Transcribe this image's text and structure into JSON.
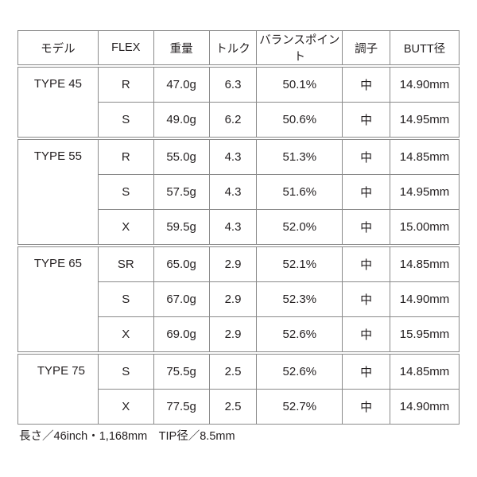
{
  "headers": [
    "モデル",
    "FLEX",
    "重量",
    "トルク",
    "バランスポイント",
    "調子",
    "BUTT径"
  ],
  "groups": [
    {
      "model": "TYPE 45",
      "rows": [
        [
          "R",
          "47.0g",
          "6.3",
          "50.1%",
          "中",
          "14.90mm"
        ],
        [
          "S",
          "49.0g",
          "6.2",
          "50.6%",
          "中",
          "14.95mm"
        ]
      ]
    },
    {
      "model": "TYPE 55",
      "rows": [
        [
          "R",
          "55.0g",
          "4.3",
          "51.3%",
          "中",
          "14.85mm"
        ],
        [
          "S",
          "57.5g",
          "4.3",
          "51.6%",
          "中",
          "14.95mm"
        ],
        [
          "X",
          "59.5g",
          "4.3",
          "52.0%",
          "中",
          "15.00mm"
        ]
      ]
    },
    {
      "model": "TYPE 65",
      "rows": [
        [
          "SR",
          "65.0g",
          "2.9",
          "52.1%",
          "中",
          "14.85mm"
        ],
        [
          "S",
          "67.0g",
          "2.9",
          "52.3%",
          "中",
          "14.90mm"
        ],
        [
          "X",
          "69.0g",
          "2.9",
          "52.6%",
          "中",
          "15.95mm"
        ]
      ]
    },
    {
      "model": "TYPE 75",
      "rows": [
        [
          "S",
          "75.5g",
          "2.5",
          "52.6%",
          "中",
          "14.85mm"
        ],
        [
          "X",
          "77.5g",
          "2.5",
          "52.7%",
          "中",
          "14.90mm"
        ]
      ]
    }
  ],
  "footer": "長さ／46inch・1,168mm　TIP径／8.5mm"
}
